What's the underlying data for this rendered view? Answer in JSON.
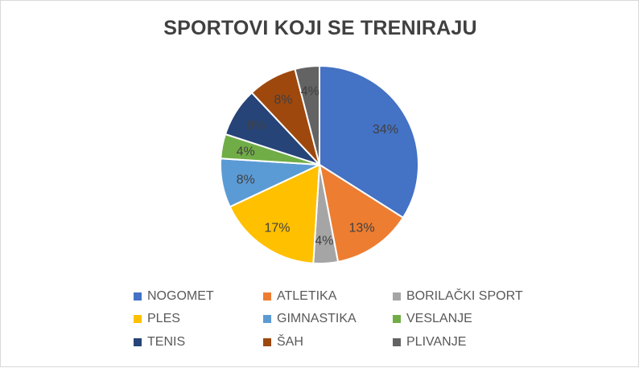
{
  "chart_data": {
    "type": "pie",
    "title": "SPORTOVI KOJI SE TRENIRAJU",
    "legend_position": "bottom",
    "slices": [
      {
        "name": "NOGOMET",
        "value": 34,
        "label": "34%",
        "color": "#4472C4"
      },
      {
        "name": "ATLETIKA",
        "value": 13,
        "label": "13%",
        "color": "#ED7D31"
      },
      {
        "name": "BORILAČKI SPORT",
        "value": 4,
        "label": "4%",
        "color": "#A5A5A5"
      },
      {
        "name": "PLES",
        "value": 17,
        "label": "17%",
        "color": "#FFC000"
      },
      {
        "name": "GIMNASTIKA",
        "value": 8,
        "label": "8%",
        "color": "#5B9BD5"
      },
      {
        "name": "VESLANJE",
        "value": 4,
        "label": "4%",
        "color": "#70AD47"
      },
      {
        "name": "TENIS",
        "value": 8,
        "label": "8%",
        "color": "#264478"
      },
      {
        "name": "ŠAH",
        "value": 8,
        "label": "8%",
        "color": "#9E480E"
      },
      {
        "name": "PLIVANJE",
        "value": 4,
        "label": "4%",
        "color": "#636363"
      }
    ]
  }
}
